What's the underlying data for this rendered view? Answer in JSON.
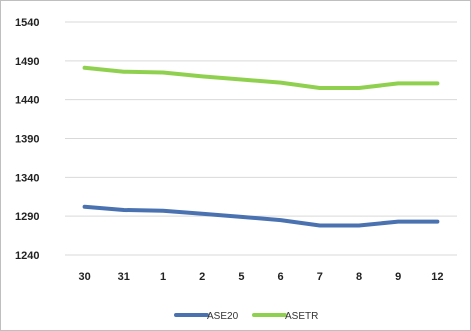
{
  "chart_data": {
    "type": "line",
    "categories": [
      "30",
      "31",
      "1",
      "2",
      "5",
      "6",
      "7",
      "8",
      "9",
      "12"
    ],
    "series": [
      {
        "name": "ASE20",
        "color": "#4a72b0",
        "values": [
          1302,
          1298,
          1297,
          1293,
          1289,
          1285,
          1278,
          1278,
          1283,
          1283
        ]
      },
      {
        "name": "ASETR",
        "color": "#8fd14f",
        "values": [
          1481,
          1476,
          1475,
          1470,
          1466,
          1462,
          1455,
          1455,
          1461,
          1461
        ]
      }
    ],
    "y_ticks": [
      "1540",
      "1490",
      "1440",
      "1390",
      "1340",
      "1290",
      "1240"
    ],
    "ylim": [
      1240,
      1540
    ],
    "grid": "horizontal",
    "legend_position": "bottom",
    "title": "",
    "xlabel": "",
    "ylabel": ""
  }
}
